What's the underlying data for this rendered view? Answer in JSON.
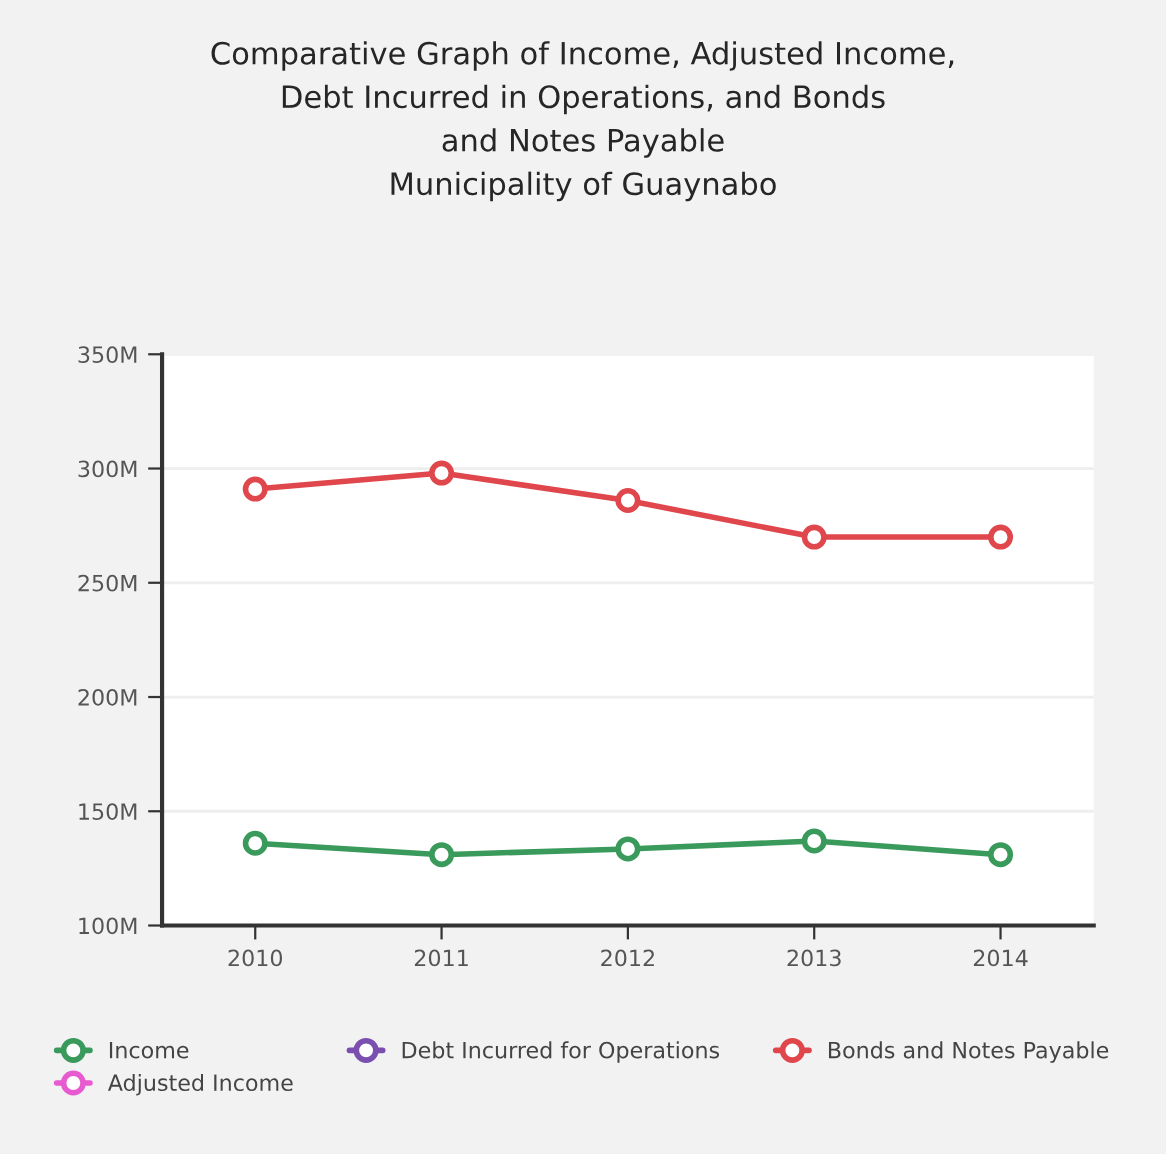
{
  "chart_data": {
    "type": "line",
    "title": "Comparative Graph of Income, Adjusted Income,\nDebt Incurred in Operations, and Bonds\nand Notes Payable\nMunicipality of Guaynabo",
    "categories": [
      "2010",
      "2011",
      "2012",
      "2013",
      "2014"
    ],
    "series": [
      {
        "name": "Income",
        "color": "#3a9a5b",
        "values": [
          136,
          131,
          133.5,
          137,
          131
        ]
      },
      {
        "name": "Adjusted Income",
        "color": "#e85ad0",
        "values": [
          null,
          null,
          null,
          null,
          null
        ]
      },
      {
        "name": "Debt Incurred for Operations",
        "color": "#7a4fb0",
        "values": [
          null,
          null,
          null,
          null,
          null
        ]
      },
      {
        "name": "Bonds and Notes Payable",
        "color": "#e0474c",
        "values": [
          291,
          298,
          286,
          270,
          270
        ]
      }
    ],
    "ylim": [
      100,
      350
    ],
    "yticks": [
      {
        "value": 100,
        "label": "100M"
      },
      {
        "value": 150,
        "label": "150M"
      },
      {
        "value": 200,
        "label": "200M"
      },
      {
        "value": 250,
        "label": "250M"
      },
      {
        "value": 300,
        "label": "300M"
      },
      {
        "value": 350,
        "label": "350M"
      }
    ],
    "grid": "y",
    "legend": "bottom",
    "marker": "circle",
    "line_style": "solid"
  }
}
